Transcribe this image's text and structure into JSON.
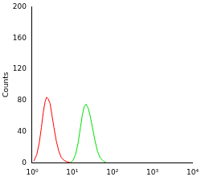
{
  "chart_data": {
    "type": "line",
    "log": "x",
    "grid": false,
    "y_label": "Counts",
    "xlim": [
      1,
      10000
    ],
    "xticks": [
      {
        "value": 1,
        "label": "10⁰"
      },
      {
        "value": 10,
        "label": "10¹"
      },
      {
        "value": 100,
        "label": "10²"
      },
      {
        "value": 1000,
        "label": "10³"
      },
      {
        "value": 10000,
        "label": "10⁴"
      }
    ],
    "ylim": [
      0,
      200
    ],
    "yticks": [
      0,
      40,
      80,
      120,
      160,
      200
    ],
    "series": [
      {
        "color": "#ff0000",
        "x": [
          1.1,
          1.3,
          1.5,
          1.7,
          1.9,
          2.1,
          2.3,
          2.5,
          2.8,
          3.1,
          3.5,
          4,
          4.6,
          5.3,
          6.2,
          7.5,
          9
        ],
        "values": [
          2,
          10,
          25,
          45,
          65,
          78,
          84,
          82,
          76,
          62,
          45,
          28,
          15,
          7,
          3,
          1,
          0
        ]
      },
      {
        "color": "#00e000",
        "x": [
          9,
          10.5,
          12,
          14,
          16,
          18,
          20,
          22,
          25,
          28,
          32,
          37,
          43,
          50,
          60,
          70
        ],
        "values": [
          0,
          3,
          10,
          25,
          45,
          62,
          72,
          75,
          70,
          60,
          45,
          28,
          14,
          6,
          2,
          0
        ]
      }
    ]
  }
}
